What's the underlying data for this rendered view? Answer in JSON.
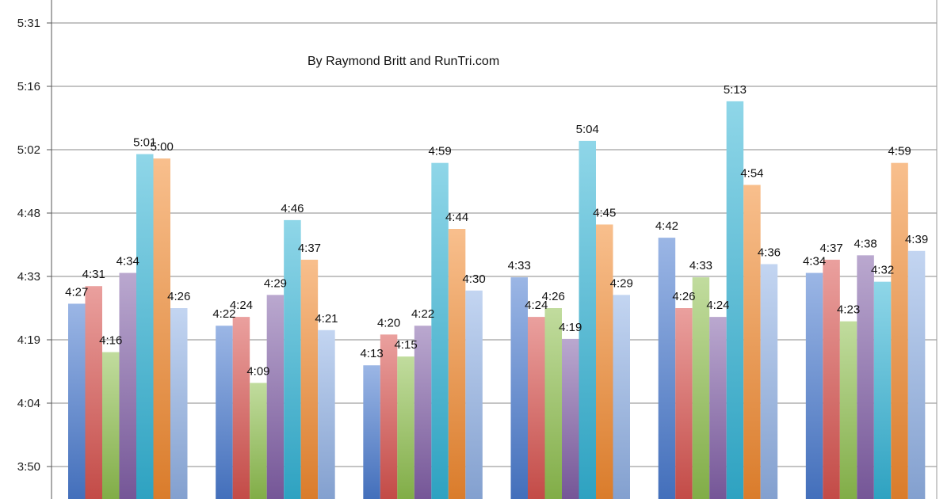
{
  "chart_data": {
    "type": "bar",
    "title": "",
    "subtitle": "By Raymond Britt and RunTri.com",
    "xlabel": "",
    "ylabel": "",
    "y_unit": "minutes (M:SS)",
    "ylim": [
      230,
      331
    ],
    "yticks": [
      "3:50",
      "4:04",
      "4:19",
      "4:33",
      "4:48",
      "5:02",
      "5:16",
      "5:31"
    ],
    "ytick_values": [
      230,
      244.4,
      258.8,
      273.2,
      287.6,
      302,
      316.4,
      330.8
    ],
    "grid": true,
    "legend": "none",
    "categories": [
      "",
      "",
      "",
      "",
      "",
      ""
    ],
    "series": [
      {
        "color": "#4a7bd0",
        "values": [
          267,
          262,
          253,
          273,
          282,
          274
        ],
        "labels": [
          "4:27",
          "4:22",
          "4:13",
          "4:33",
          "4:42",
          "4:34"
        ]
      },
      {
        "color": "#d9534f",
        "values": [
          271,
          264,
          260,
          264,
          266,
          277
        ],
        "labels": [
          "4:31",
          "4:24",
          "4:20",
          "4:24",
          "4:26",
          "4:37"
        ]
      },
      {
        "color": "#8fc04f",
        "values": [
          256,
          249,
          255,
          266,
          273,
          263
        ],
        "labels": [
          "4:16",
          "4:09",
          "4:15",
          "4:26",
          "4:33",
          "4:23"
        ]
      },
      {
        "color": "#8260a8",
        "values": [
          274,
          269,
          262,
          259,
          264,
          278
        ],
        "labels": [
          "4:34",
          "4:29",
          "4:22",
          "4:19",
          "4:24",
          "4:38"
        ]
      },
      {
        "color": "#33b4d6",
        "values": [
          301,
          286,
          299,
          304,
          313,
          272
        ],
        "labels": [
          "5:01",
          "4:46",
          "4:59",
          "5:04",
          "5:13",
          "4:32"
        ]
      },
      {
        "color": "#f28a30",
        "values": [
          300,
          277,
          284,
          285,
          294,
          299
        ],
        "labels": [
          "5:00",
          "4:37",
          "4:44",
          "4:45",
          "4:54",
          "4:59"
        ]
      },
      {
        "color": "#92b2e6",
        "values": [
          266,
          261,
          270,
          269,
          276,
          279
        ],
        "labels": [
          "4:26",
          "4:21",
          "4:30",
          "4:29",
          "4:36",
          "4:39"
        ]
      }
    ]
  }
}
